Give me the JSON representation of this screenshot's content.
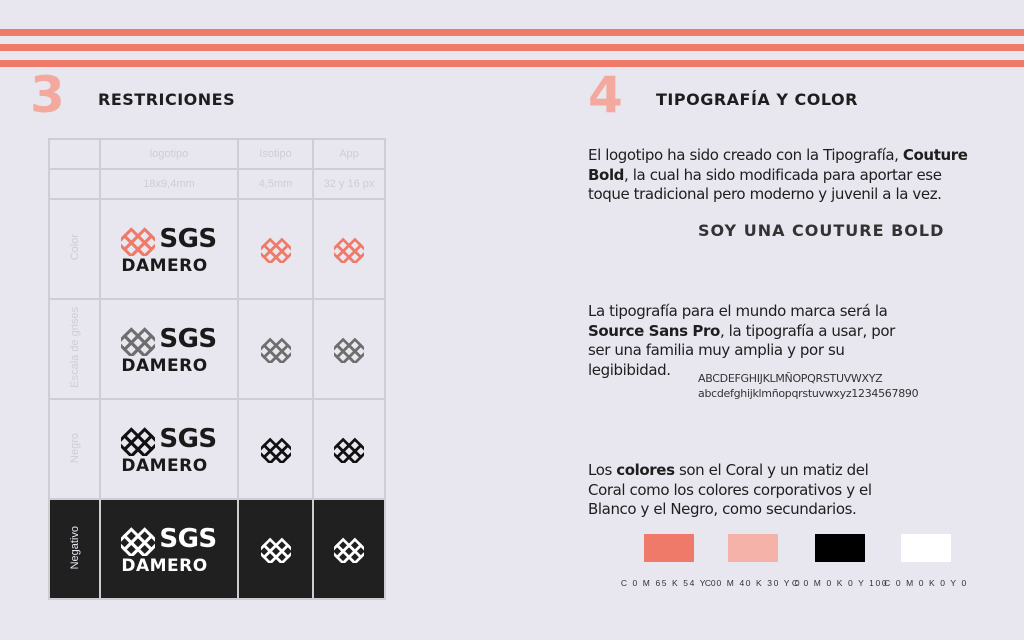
{
  "left": {
    "number": "3",
    "title": "RESTRICIONES",
    "table": {
      "headers": [
        "logotipo",
        "Isotipo",
        "App"
      ],
      "sizes": [
        "18x9,4mm",
        "4,5mm",
        "32 y 16 px"
      ],
      "rows": [
        {
          "label": "Color",
          "color": "#ef7a69",
          "text": "#1a1a1a"
        },
        {
          "label": "Escala de grises",
          "color": "#6e6e6e",
          "text": "#1a1a1a"
        },
        {
          "label": "Negro",
          "color": "#111111",
          "text": "#1a1a1a"
        },
        {
          "label": "Negativo",
          "color": "#ffffff",
          "text": "#ffffff"
        }
      ],
      "logo_top": "SGS",
      "logo_bottom": "DAMERO"
    }
  },
  "right": {
    "number": "4",
    "title": "TIPOGRAFÍA Y COLOR",
    "p1a": "El logotipo ha sido creado con la Tipografía, ",
    "p1b": "Couture Bold",
    "p1c": ", la cual ha sido modificada para aportar ese toque tradicional pero moderno y juvenil a la vez.",
    "sample": "SOY UNA COUTURE BOLD",
    "p2a": "La tipografía para el mundo marca será la ",
    "p2b": "Source Sans Pro",
    "p2c": ", la tipografía a usar, por ser una familia muy amplia y por su legibibidad.",
    "upper": "ABCDEFGHIJKLMÑOPQRSTUVWXYZ",
    "lower": "abcdefghijklmñopqrstuvwxyz1234567890",
    "p3a": "Los ",
    "p3b": "colores",
    "p3c": " son el Coral y un matiz del Coral como los colores corporativos y el Blanco y el Negro, como secundarios.",
    "swatches": [
      {
        "hex": "#ef7a69",
        "label": "C 0 M 65 K 54 Y 0"
      },
      {
        "hex": "#f4b2a8",
        "label": "C 0 M 40 K 30 Y 0"
      },
      {
        "hex": "#000000",
        "label": "C 0 M 0 K 0 Y 100"
      },
      {
        "hex": "#ffffff",
        "label": "C 0 M 0 K 0 Y 0"
      }
    ]
  }
}
